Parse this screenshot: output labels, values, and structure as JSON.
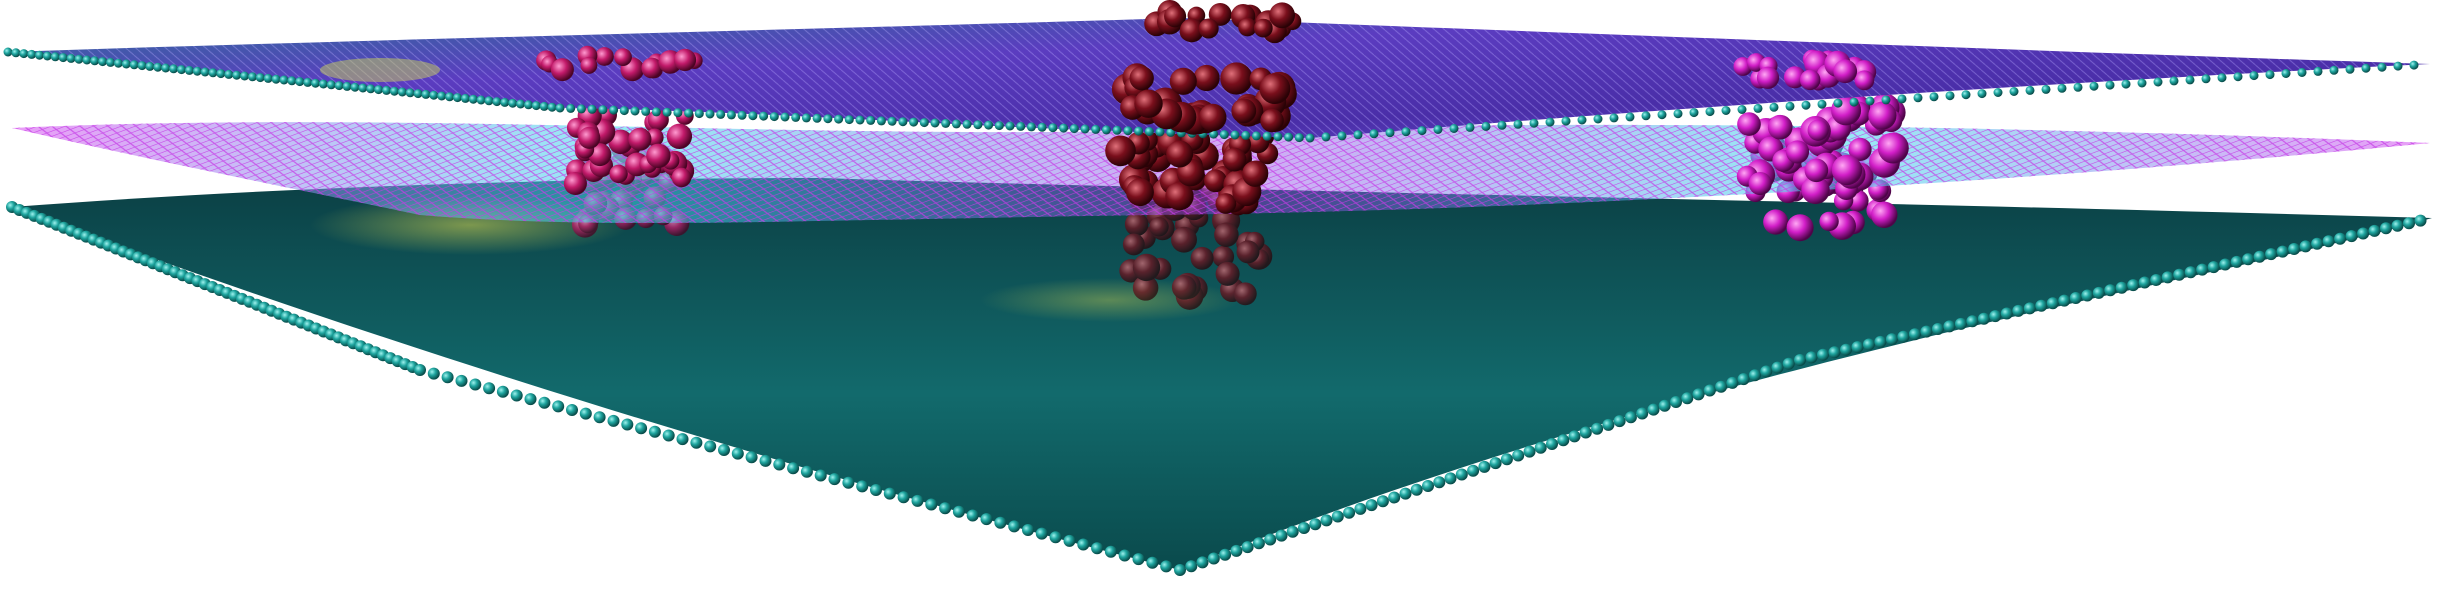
{
  "scene": {
    "description_visible_text": "",
    "background": "#ffffff",
    "colors": {
      "bottom_sheet": "#1a8f8f",
      "bottom_sheet_dark": "#0d4f50",
      "middle_mesh": "#c63ce6",
      "middle_mesh_glow": "#40e0f0",
      "top_sheet": "#4a3aa8",
      "top_sheet_atoms": "#24a6a0",
      "pillar_left": "#c21a6a",
      "pillar_center": "#7a0f1c",
      "pillar_right": "#d21ec8",
      "highlight_yellow": "#e8e04a"
    },
    "layers": [
      {
        "name": "bottom-atomic-sheet",
        "kind": "sphere-lattice"
      },
      {
        "name": "middle-wire-mesh",
        "kind": "wireframe"
      },
      {
        "name": "top-atomic-sheet",
        "kind": "sphere-lattice"
      }
    ],
    "pillars": [
      {
        "name": "left-pillar",
        "color_key": "pillar_left"
      },
      {
        "name": "center-pillar",
        "color_key": "pillar_center"
      },
      {
        "name": "right-pillar",
        "color_key": "pillar_right"
      }
    ]
  }
}
